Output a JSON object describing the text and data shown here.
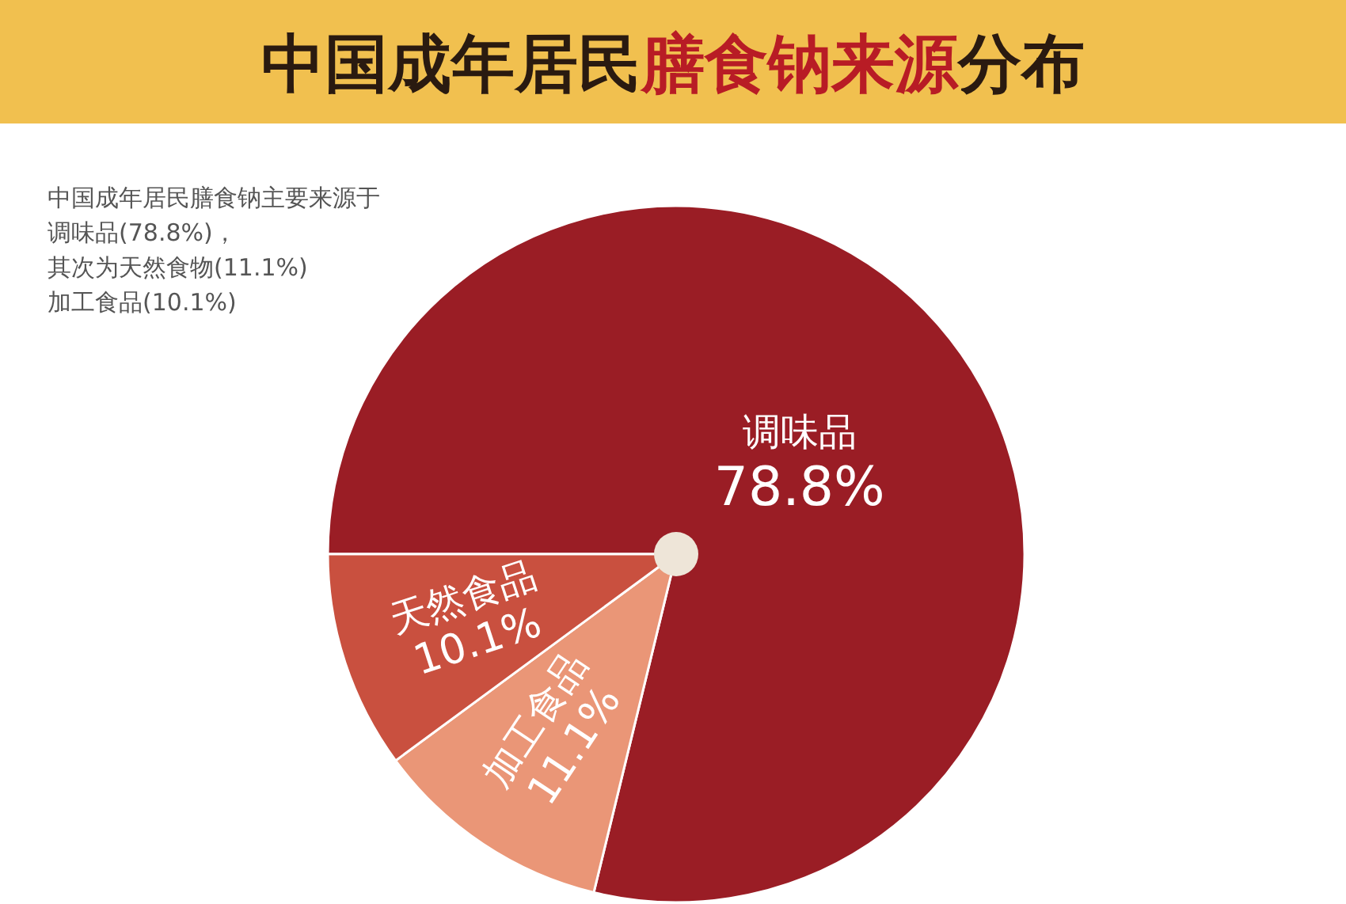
{
  "chart_data": {
    "type": "pie",
    "title": "中国成年居民**膳食钠来源**分布",
    "categories": [
      "调味品",
      "加工食品",
      "天然食品"
    ],
    "values": [
      78.8,
      11.1,
      10.1
    ],
    "value_labels": [
      "78.8%",
      "11.1%",
      "10.1%"
    ],
    "colors": [
      "#9a1d25",
      "#ea9677",
      "#c9503f"
    ],
    "annotations": [
      "中国成年居民膳食钠主要来源于",
      "调味品(78.8%)，",
      "其次为天然食物(11.1%)",
      "加工食品(10.1%)"
    ]
  }
}
